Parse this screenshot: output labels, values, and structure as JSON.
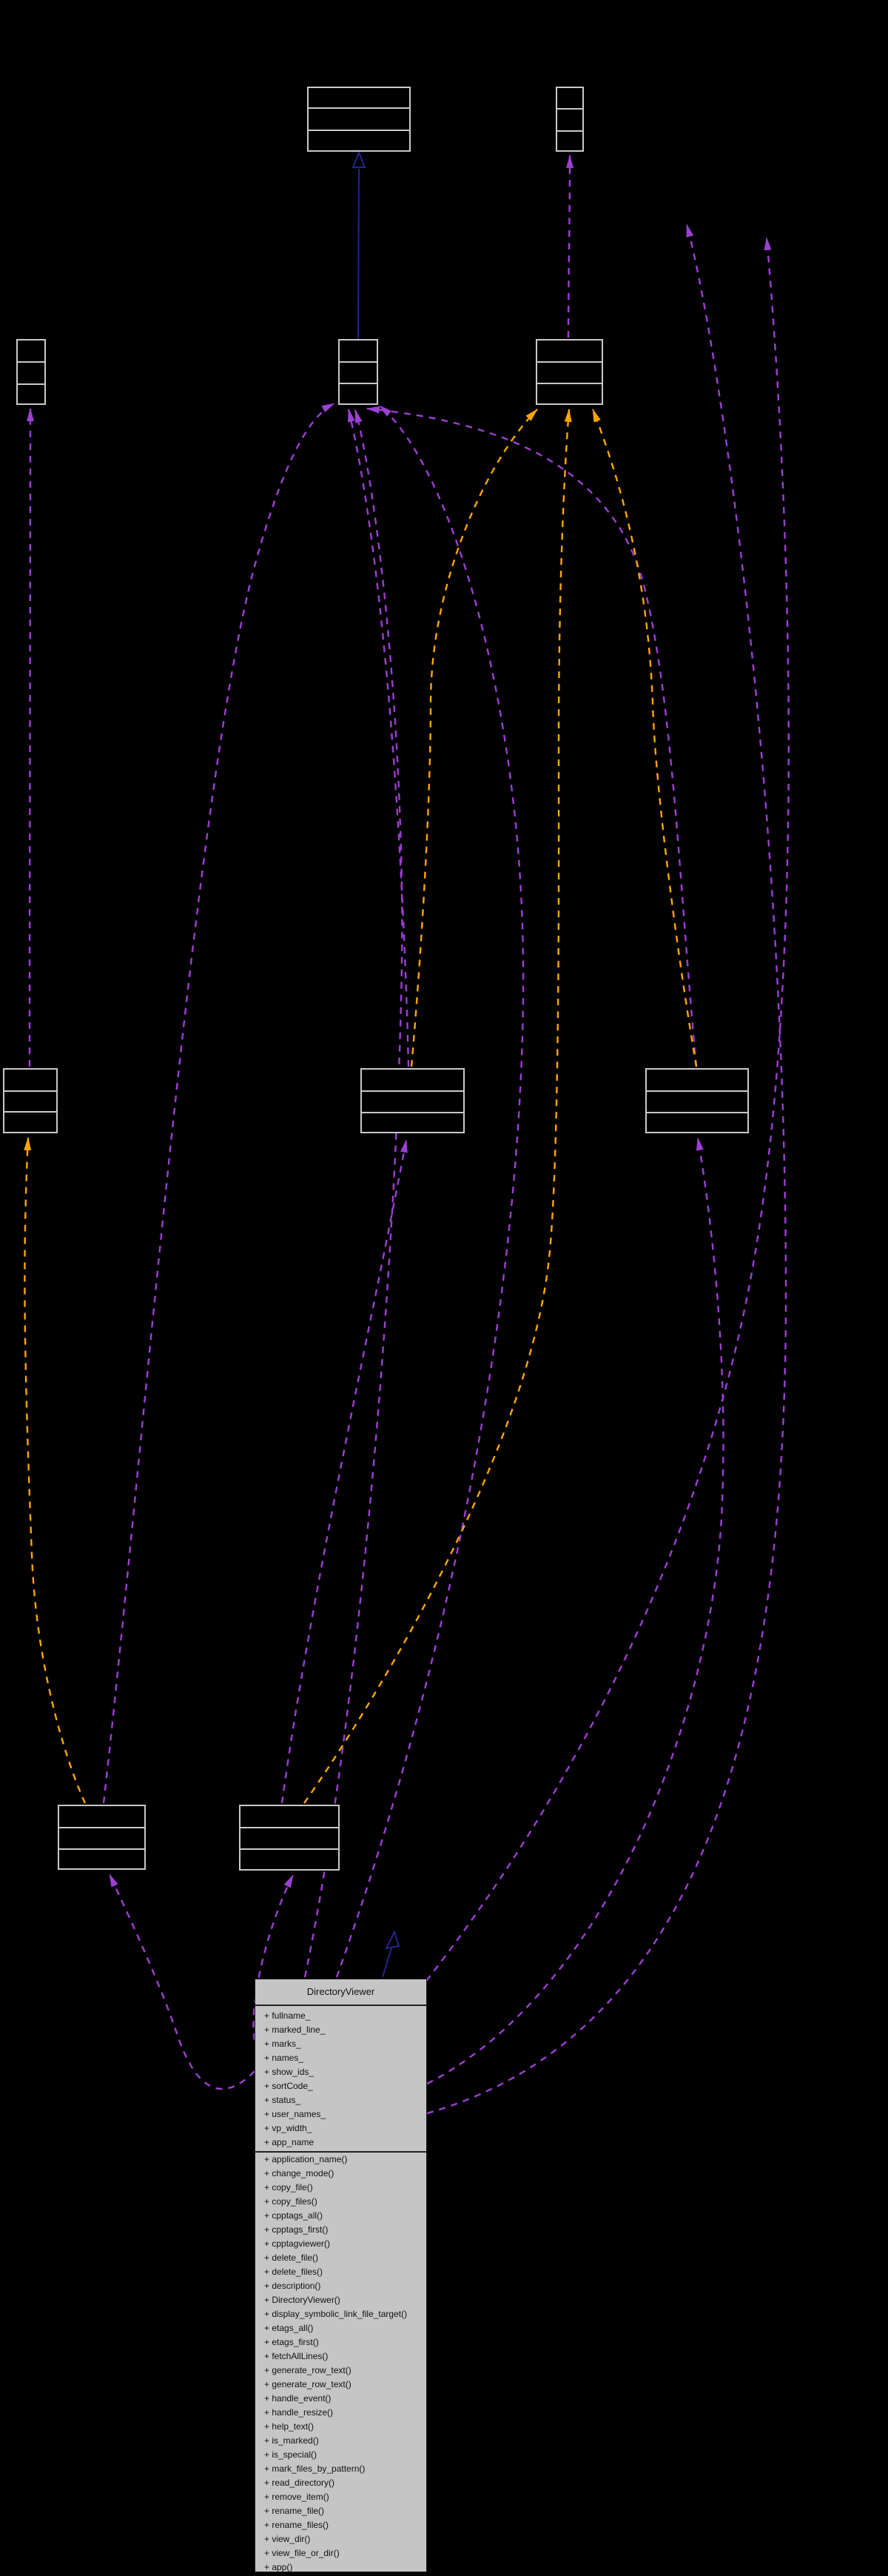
{
  "diagram": {
    "type": "uml-collaboration-graph",
    "main_class": {
      "title": "DirectoryViewer",
      "attributes": [
        "+ fullname_",
        "+ marked_line_",
        "+ marks_",
        "+ names_",
        "+ show_ids_",
        "+ sortCode_",
        "+ status_",
        "+ user_names_",
        "+ vp_width_",
        "+ app_name"
      ],
      "methods": [
        "+ application_name()",
        "+ change_mode()",
        "+ copy_file()",
        "+ copy_files()",
        "+ cpptags_all()",
        "+ cpptags_first()",
        "+ cpptagviewer()",
        "+ delete_file()",
        "+ delete_files()",
        "+ description()",
        "+ DirectoryViewer()",
        "+ display_symbolic_link_file_target()",
        "+ etags_all()",
        "+ etags_first()",
        "+ fetchAllLines()",
        "+ generate_row_text()",
        "+ generate_row_text()",
        "+ handle_event()",
        "+ handle_resize()",
        "+ help_text()",
        "+ is_marked()",
        "+ is_special()",
        "+ mark_files_by_pattern()",
        "+ read_directory()",
        "+ remove_item()",
        "+ rename_file()",
        "+ rename_files()",
        "+ view_dir()",
        "+ view_file_or_dir()",
        "+ app()"
      ]
    },
    "unlabeled_class_boxes": 10,
    "colors": {
      "background": "#000000",
      "usage_edge_purple": "#9c3fd4",
      "template_edge_orange": "#ffa500",
      "inheritance_edge_navy": "#23238f",
      "node_border_gray": "#c9c9c9",
      "main_class_fill": "#c5c5c5"
    }
  }
}
